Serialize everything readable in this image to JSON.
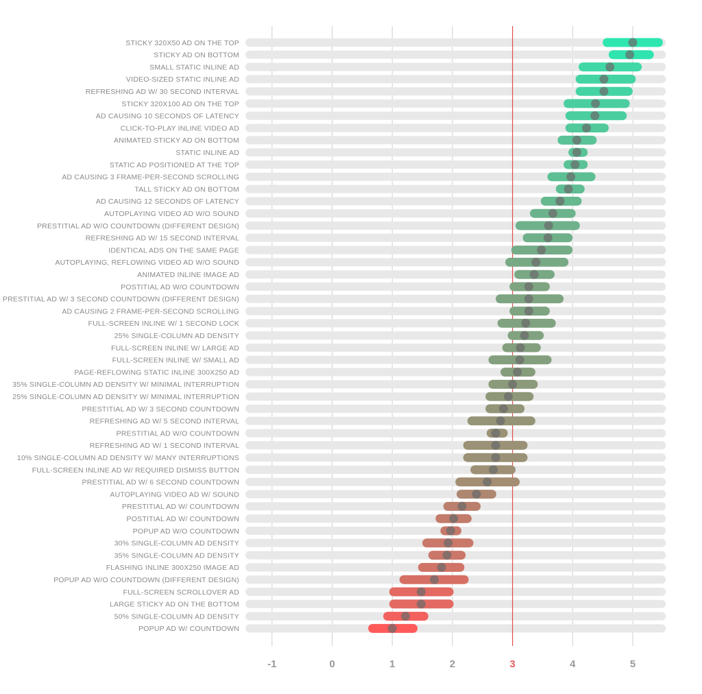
{
  "chart_data": {
    "type": "range-dot",
    "title": "",
    "xlabel": "",
    "ylabel": "",
    "xlim": [
      -1.45,
      5.55
    ],
    "xticks": [
      -1,
      0,
      1,
      2,
      3,
      4,
      5
    ],
    "xtick_labels": [
      "-1",
      "0",
      "1",
      "2",
      "3",
      "4",
      "5"
    ],
    "reference_line": 3,
    "grid": true,
    "colors": {
      "high": "#2ee6b0",
      "mid": "#8a9a7a",
      "low": "#ff5a5a",
      "track": "#e8e8e8",
      "reference": "#e05050",
      "grid": "#cfcfcf",
      "dot": "#6b6b6b"
    },
    "rows": [
      {
        "label": "STICKY 320X50 AD ON THE TOP",
        "low": 4.5,
        "high": 5.5,
        "mean": 5.0
      },
      {
        "label": "STICKY AD ON BOTTOM",
        "low": 4.6,
        "high": 5.35,
        "mean": 4.95
      },
      {
        "label": "SMALL STATIC INLINE AD",
        "low": 4.1,
        "high": 5.15,
        "mean": 4.62
      },
      {
        "label": "VIDEO-SIZED STATIC INLINE AD",
        "low": 4.05,
        "high": 5.05,
        "mean": 4.52
      },
      {
        "label": "REFRESHING AD W/ 30 SECOND INTERVAL",
        "low": 4.05,
        "high": 5.0,
        "mean": 4.52
      },
      {
        "label": "STICKY 320X100 AD ON THE TOP",
        "low": 3.85,
        "high": 4.95,
        "mean": 4.38
      },
      {
        "label": "AD CAUSING 10 SECONDS OF LATENCY",
        "low": 3.88,
        "high": 4.9,
        "mean": 4.37
      },
      {
        "label": "CLICK-TO-PLAY INLINE VIDEO AD",
        "low": 3.88,
        "high": 4.6,
        "mean": 4.23
      },
      {
        "label": "ANIMATED STICKY AD ON BOTTOM",
        "low": 3.75,
        "high": 4.4,
        "mean": 4.07
      },
      {
        "label": "STATIC INLINE AD",
        "low": 3.93,
        "high": 4.25,
        "mean": 4.07
      },
      {
        "label": "STATIC AD POSITIONED AT THE TOP",
        "low": 3.85,
        "high": 4.25,
        "mean": 4.04
      },
      {
        "label": "AD CAUSING 3 FRAME-PER-SECOND SCROLLING",
        "low": 3.58,
        "high": 4.38,
        "mean": 3.97
      },
      {
        "label": "TALL STICKY AD ON BOTTOM",
        "low": 3.72,
        "high": 4.2,
        "mean": 3.93
      },
      {
        "label": "AD CAUSING 12 SECONDS OF LATENCY",
        "low": 3.47,
        "high": 4.15,
        "mean": 3.79
      },
      {
        "label": "AUTOPLAYING VIDEO AD W/O SOUND",
        "low": 3.29,
        "high": 4.05,
        "mean": 3.67
      },
      {
        "label": "PRESTITIAL AD W/O COUNTDOWN (DIFFERENT DESIGN)",
        "low": 3.05,
        "high": 4.12,
        "mean": 3.6
      },
      {
        "label": "REFRESHING AD W/ 15 SECOND INTERVAL",
        "low": 3.17,
        "high": 4.0,
        "mean": 3.59
      },
      {
        "label": "IDENTICAL ADS ON THE SAME PAGE",
        "low": 2.98,
        "high": 4.0,
        "mean": 3.48
      },
      {
        "label": "AUTOPLAYING, REFLOWING VIDEO AD W/O SOUND",
        "low": 2.88,
        "high": 3.93,
        "mean": 3.39
      },
      {
        "label": "ANIMATED INLINE IMAGE AD",
        "low": 3.03,
        "high": 3.7,
        "mean": 3.36
      },
      {
        "label": "POSTITIAL AD W/O COUNTDOWN",
        "low": 2.95,
        "high": 3.62,
        "mean": 3.27
      },
      {
        "label": "PRESTITIAL AD W/ 3 SECOND COUNTDOWN (DIFFERENT DESIGN)",
        "low": 2.72,
        "high": 3.85,
        "mean": 3.27
      },
      {
        "label": "AD CAUSING 2 FRAME-PER-SECOND SCROLLING",
        "low": 2.95,
        "high": 3.62,
        "mean": 3.27
      },
      {
        "label": "FULL-SCREEN INLINE W/ 1 SECOND LOCK",
        "low": 2.75,
        "high": 3.72,
        "mean": 3.22
      },
      {
        "label": "25% SINGLE-COLUMN AD DENSITY",
        "low": 2.92,
        "high": 3.52,
        "mean": 3.2
      },
      {
        "label": "FULL-SCREEN INLINE W/ LARGE AD",
        "low": 2.83,
        "high": 3.47,
        "mean": 3.13
      },
      {
        "label": "FULL-SCREEN INLINE W/ SMALL AD",
        "low": 2.6,
        "high": 3.65,
        "mean": 3.12
      },
      {
        "label": "PAGE-REFLOWING STATIC INLINE 300X250 AD",
        "low": 2.8,
        "high": 3.38,
        "mean": 3.08
      },
      {
        "label": "35% SINGLE-COLUMN AD DENSITY W/ MINIMAL INTERRUPTION",
        "low": 2.6,
        "high": 3.42,
        "mean": 3.0
      },
      {
        "label": "25% SINGLE-COLUMN AD DENSITY W/ MINIMAL INTERRUPTION",
        "low": 2.55,
        "high": 3.35,
        "mean": 2.93
      },
      {
        "label": "PRESTITIAL AD W/ 3 SECOND COUNTDOWN",
        "low": 2.55,
        "high": 3.2,
        "mean": 2.85
      },
      {
        "label": "REFRESHING AD W/ 5 SECOND INTERVAL",
        "low": 2.25,
        "high": 3.38,
        "mean": 2.8
      },
      {
        "label": "PRESTITIAL AD W/O COUNTDOWN",
        "low": 2.57,
        "high": 2.92,
        "mean": 2.72
      },
      {
        "label": "REFRESHING AD W/ 1 SECOND INTERVAL",
        "low": 2.18,
        "high": 3.25,
        "mean": 2.72
      },
      {
        "label": "10% SINGLE-COLUMN AD DENSITY W/ MANY INTERRUPTIONS",
        "low": 2.18,
        "high": 3.25,
        "mean": 2.72
      },
      {
        "label": "FULL-SCREEN INLINE AD W/ REQUIRED DISMISS BUTTON",
        "low": 2.3,
        "high": 3.05,
        "mean": 2.68
      },
      {
        "label": "PRESTITIAL AD W/ 6 SECOND COUNTDOWN",
        "low": 2.05,
        "high": 3.12,
        "mean": 2.58
      },
      {
        "label": "AUTOPLAYING VIDEO AD W/ SOUND",
        "low": 2.07,
        "high": 2.73,
        "mean": 2.4
      },
      {
        "label": "PRESTITIAL AD W/ COUNTDOWN",
        "low": 1.85,
        "high": 2.47,
        "mean": 2.16
      },
      {
        "label": "POSTITIAL AD W/ COUNTDOWN",
        "low": 1.72,
        "high": 2.32,
        "mean": 2.02
      },
      {
        "label": "POPUP AD W/O COUNTDOWN",
        "low": 1.8,
        "high": 2.15,
        "mean": 1.97
      },
      {
        "label": "30% SINGLE-COLUMN AD DENSITY",
        "low": 1.5,
        "high": 2.35,
        "mean": 1.93
      },
      {
        "label": "35% SINGLE-COLUMN AD DENSITY",
        "low": 1.6,
        "high": 2.22,
        "mean": 1.91
      },
      {
        "label": "FLASHING INLINE 300X250 IMAGE AD",
        "low": 1.43,
        "high": 2.2,
        "mean": 1.82
      },
      {
        "label": "POPUP AD W/O COUNTDOWN (DIFFERENT DESIGN)",
        "low": 1.12,
        "high": 2.27,
        "mean": 1.7
      },
      {
        "label": "FULL-SCREEN SCROLLOVER AD",
        "low": 0.95,
        "high": 2.02,
        "mean": 1.48
      },
      {
        "label": "LARGE STICKY AD ON THE BOTTOM",
        "low": 0.95,
        "high": 2.02,
        "mean": 1.48
      },
      {
        "label": "50% SINGLE-COLUMN AD DENSITY",
        "low": 0.85,
        "high": 1.6,
        "mean": 1.22
      },
      {
        "label": "POPUP AD W/ COUNTDOWN",
        "low": 0.6,
        "high": 1.42,
        "mean": 1.0
      }
    ]
  }
}
